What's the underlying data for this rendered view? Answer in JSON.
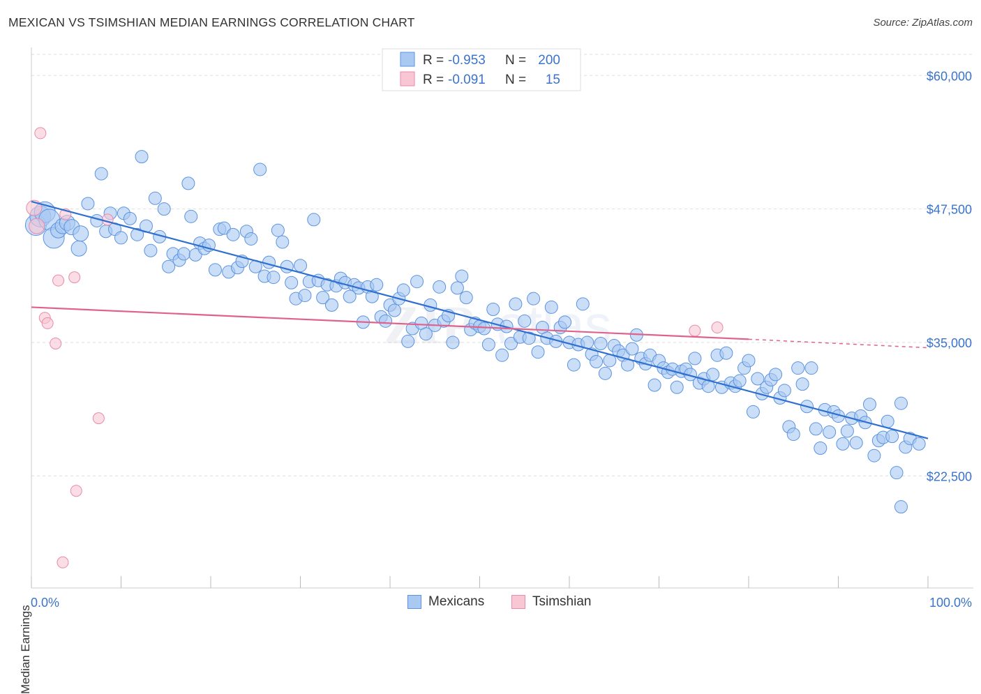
{
  "title": "MEXICAN VS TSIMSHIAN MEDIAN EARNINGS CORRELATION CHART",
  "source": "Source: ZipAtlas.com",
  "watermark": "ZIPatlas",
  "colors": {
    "blue_fill": "#a9c8f2",
    "blue_stroke": "#5b93e0",
    "blue_line": "#2e6fd0",
    "pink_fill": "#f8c6d4",
    "pink_stroke": "#e98aa8",
    "pink_line": "#e0628c",
    "tick_text": "#3a74c9",
    "grid": "#dddddd"
  },
  "legend": {
    "rows": [
      {
        "r_label": "R =",
        "r_value": "-0.953",
        "n_label": "N =",
        "n_value": "200"
      },
      {
        "r_label": "R =",
        "r_value": "-0.091",
        "n_label": "N =",
        "n_value": "15"
      }
    ]
  },
  "bottom_legend": [
    "Mexicans",
    "Tsimshian"
  ],
  "chart_data": {
    "type": "scatter",
    "xlabel": "",
    "ylabel": "Median Earnings",
    "xlim": [
      0,
      100
    ],
    "ylim": [
      12000,
      62500
    ],
    "x_tick_labels": [
      "0.0%",
      "100.0%"
    ],
    "y_ticks": [
      22500,
      35000,
      47500,
      60000
    ],
    "y_tick_labels": [
      "$22,500",
      "$35,000",
      "$47,500",
      "$60,000"
    ],
    "grid": true,
    "legend_position": "top-center",
    "series": [
      {
        "name": "Mexicans",
        "trend": {
          "x0": 0,
          "y0": 48200,
          "x1": 100,
          "y1": 26000
        },
        "points": [
          {
            "x": 0.5,
            "y": 46000
          },
          {
            "x": 1.0,
            "y": 46800
          },
          {
            "x": 1.5,
            "y": 47200
          },
          {
            "x": 2.0,
            "y": 46500
          },
          {
            "x": 2.5,
            "y": 44800
          },
          {
            "x": 3.0,
            "y": 45500
          },
          {
            "x": 3.5,
            "y": 45900
          },
          {
            "x": 4.0,
            "y": 46200
          },
          {
            "x": 4.5,
            "y": 45800
          },
          {
            "x": 5.3,
            "y": 43800
          },
          {
            "x": 5.5,
            "y": 45200
          },
          {
            "x": 6.3,
            "y": 48000
          },
          {
            "x": 7.3,
            "y": 46400
          },
          {
            "x": 7.8,
            "y": 50800
          },
          {
            "x": 8.3,
            "y": 45400
          },
          {
            "x": 8.8,
            "y": 47100
          },
          {
            "x": 9.3,
            "y": 45600
          },
          {
            "x": 10.0,
            "y": 44800
          },
          {
            "x": 10.3,
            "y": 47100
          },
          {
            "x": 11.0,
            "y": 46600
          },
          {
            "x": 11.8,
            "y": 45100
          },
          {
            "x": 12.3,
            "y": 52400
          },
          {
            "x": 12.8,
            "y": 45900
          },
          {
            "x": 13.3,
            "y": 43600
          },
          {
            "x": 13.8,
            "y": 48500
          },
          {
            "x": 14.3,
            "y": 44900
          },
          {
            "x": 14.8,
            "y": 47500
          },
          {
            "x": 15.3,
            "y": 42100
          },
          {
            "x": 15.8,
            "y": 43300
          },
          {
            "x": 16.5,
            "y": 42700
          },
          {
            "x": 17.0,
            "y": 43300
          },
          {
            "x": 17.5,
            "y": 49900
          },
          {
            "x": 17.8,
            "y": 46800
          },
          {
            "x": 18.3,
            "y": 43200
          },
          {
            "x": 18.8,
            "y": 44300
          },
          {
            "x": 19.3,
            "y": 43800
          },
          {
            "x": 19.8,
            "y": 44100
          },
          {
            "x": 20.5,
            "y": 41800
          },
          {
            "x": 21.0,
            "y": 45600
          },
          {
            "x": 21.5,
            "y": 45700
          },
          {
            "x": 22.0,
            "y": 41600
          },
          {
            "x": 22.5,
            "y": 45100
          },
          {
            "x": 23.0,
            "y": 42000
          },
          {
            "x": 23.5,
            "y": 42600
          },
          {
            "x": 24.0,
            "y": 45400
          },
          {
            "x": 24.5,
            "y": 44700
          },
          {
            "x": 25.0,
            "y": 42100
          },
          {
            "x": 25.5,
            "y": 51200
          },
          {
            "x": 26.0,
            "y": 41200
          },
          {
            "x": 26.5,
            "y": 42500
          },
          {
            "x": 27.0,
            "y": 41100
          },
          {
            "x": 27.5,
            "y": 45500
          },
          {
            "x": 28.0,
            "y": 44400
          },
          {
            "x": 28.5,
            "y": 42100
          },
          {
            "x": 29.0,
            "y": 40600
          },
          {
            "x": 29.5,
            "y": 39100
          },
          {
            "x": 30.0,
            "y": 42200
          },
          {
            "x": 30.5,
            "y": 39400
          },
          {
            "x": 31.0,
            "y": 40700
          },
          {
            "x": 31.5,
            "y": 46500
          },
          {
            "x": 32.0,
            "y": 40800
          },
          {
            "x": 32.5,
            "y": 39200
          },
          {
            "x": 33.0,
            "y": 40400
          },
          {
            "x": 33.5,
            "y": 38500
          },
          {
            "x": 34.0,
            "y": 40300
          },
          {
            "x": 34.5,
            "y": 41000
          },
          {
            "x": 35.0,
            "y": 40600
          },
          {
            "x": 35.5,
            "y": 39300
          },
          {
            "x": 36.0,
            "y": 40400
          },
          {
            "x": 36.5,
            "y": 40100
          },
          {
            "x": 37.0,
            "y": 36900
          },
          {
            "x": 37.5,
            "y": 40200
          },
          {
            "x": 38.0,
            "y": 39300
          },
          {
            "x": 38.5,
            "y": 40400
          },
          {
            "x": 39.0,
            "y": 37400
          },
          {
            "x": 39.5,
            "y": 37000
          },
          {
            "x": 40.0,
            "y": 38500
          },
          {
            "x": 40.5,
            "y": 38000
          },
          {
            "x": 41.0,
            "y": 39100
          },
          {
            "x": 41.5,
            "y": 39900
          },
          {
            "x": 42.0,
            "y": 35100
          },
          {
            "x": 42.5,
            "y": 36300
          },
          {
            "x": 43.0,
            "y": 40700
          },
          {
            "x": 43.5,
            "y": 36800
          },
          {
            "x": 44.0,
            "y": 35800
          },
          {
            "x": 44.5,
            "y": 38500
          },
          {
            "x": 45.0,
            "y": 36600
          },
          {
            "x": 45.5,
            "y": 40200
          },
          {
            "x": 46.0,
            "y": 37000
          },
          {
            "x": 46.5,
            "y": 37500
          },
          {
            "x": 47.0,
            "y": 35000
          },
          {
            "x": 47.5,
            "y": 40100
          },
          {
            "x": 48.0,
            "y": 41200
          },
          {
            "x": 48.5,
            "y": 39200
          },
          {
            "x": 49.0,
            "y": 36200
          },
          {
            "x": 49.5,
            "y": 36800
          },
          {
            "x": 50.0,
            "y": 36500
          },
          {
            "x": 50.5,
            "y": 36300
          },
          {
            "x": 51.0,
            "y": 34800
          },
          {
            "x": 51.5,
            "y": 38100
          },
          {
            "x": 52.0,
            "y": 36700
          },
          {
            "x": 52.5,
            "y": 33800
          },
          {
            "x": 53.0,
            "y": 36500
          },
          {
            "x": 53.5,
            "y": 34900
          },
          {
            "x": 54.0,
            "y": 38600
          },
          {
            "x": 54.5,
            "y": 35500
          },
          {
            "x": 55.0,
            "y": 37000
          },
          {
            "x": 55.5,
            "y": 35400
          },
          {
            "x": 56.0,
            "y": 39100
          },
          {
            "x": 56.5,
            "y": 34100
          },
          {
            "x": 57.0,
            "y": 36400
          },
          {
            "x": 57.5,
            "y": 35400
          },
          {
            "x": 58.0,
            "y": 38300
          },
          {
            "x": 58.5,
            "y": 35100
          },
          {
            "x": 59.0,
            "y": 36400
          },
          {
            "x": 59.5,
            "y": 36900
          },
          {
            "x": 60.0,
            "y": 35000
          },
          {
            "x": 60.5,
            "y": 32900
          },
          {
            "x": 61.0,
            "y": 34800
          },
          {
            "x": 61.5,
            "y": 38600
          },
          {
            "x": 62.0,
            "y": 35000
          },
          {
            "x": 62.5,
            "y": 33900
          },
          {
            "x": 63.0,
            "y": 33200
          },
          {
            "x": 63.5,
            "y": 34900
          },
          {
            "x": 64.0,
            "y": 32100
          },
          {
            "x": 64.5,
            "y": 33300
          },
          {
            "x": 65.0,
            "y": 34700
          },
          {
            "x": 65.5,
            "y": 34200
          },
          {
            "x": 66.0,
            "y": 33800
          },
          {
            "x": 66.5,
            "y": 32900
          },
          {
            "x": 67.0,
            "y": 34400
          },
          {
            "x": 67.5,
            "y": 35700
          },
          {
            "x": 68.0,
            "y": 33500
          },
          {
            "x": 68.5,
            "y": 33000
          },
          {
            "x": 69.0,
            "y": 33800
          },
          {
            "x": 69.5,
            "y": 31000
          },
          {
            "x": 70.0,
            "y": 33300
          },
          {
            "x": 70.5,
            "y": 32600
          },
          {
            "x": 71.0,
            "y": 32200
          },
          {
            "x": 71.5,
            "y": 32500
          },
          {
            "x": 72.0,
            "y": 30800
          },
          {
            "x": 72.5,
            "y": 32300
          },
          {
            "x": 73.0,
            "y": 32500
          },
          {
            "x": 73.5,
            "y": 32000
          },
          {
            "x": 74.0,
            "y": 33500
          },
          {
            "x": 74.5,
            "y": 31200
          },
          {
            "x": 75.0,
            "y": 31600
          },
          {
            "x": 75.5,
            "y": 30900
          },
          {
            "x": 76.0,
            "y": 32000
          },
          {
            "x": 76.5,
            "y": 33800
          },
          {
            "x": 77.0,
            "y": 30800
          },
          {
            "x": 77.5,
            "y": 34000
          },
          {
            "x": 78.0,
            "y": 31200
          },
          {
            "x": 78.5,
            "y": 30900
          },
          {
            "x": 79.0,
            "y": 31400
          },
          {
            "x": 79.5,
            "y": 32600
          },
          {
            "x": 80.0,
            "y": 33300
          },
          {
            "x": 80.5,
            "y": 28500
          },
          {
            "x": 81.0,
            "y": 31600
          },
          {
            "x": 81.5,
            "y": 30200
          },
          {
            "x": 82.0,
            "y": 30800
          },
          {
            "x": 82.5,
            "y": 31500
          },
          {
            "x": 83.0,
            "y": 32000
          },
          {
            "x": 83.5,
            "y": 29800
          },
          {
            "x": 84.0,
            "y": 30500
          },
          {
            "x": 84.5,
            "y": 27100
          },
          {
            "x": 85.0,
            "y": 26400
          },
          {
            "x": 85.5,
            "y": 32600
          },
          {
            "x": 86.0,
            "y": 31100
          },
          {
            "x": 86.5,
            "y": 29000
          },
          {
            "x": 87.0,
            "y": 32600
          },
          {
            "x": 87.5,
            "y": 26900
          },
          {
            "x": 88.0,
            "y": 25100
          },
          {
            "x": 88.5,
            "y": 28700
          },
          {
            "x": 89.0,
            "y": 26600
          },
          {
            "x": 89.5,
            "y": 28500
          },
          {
            "x": 90.0,
            "y": 28100
          },
          {
            "x": 90.5,
            "y": 25500
          },
          {
            "x": 91.0,
            "y": 26700
          },
          {
            "x": 91.5,
            "y": 27900
          },
          {
            "x": 92.0,
            "y": 25600
          },
          {
            "x": 92.5,
            "y": 28100
          },
          {
            "x": 93.0,
            "y": 27500
          },
          {
            "x": 93.5,
            "y": 29200
          },
          {
            "x": 94.0,
            "y": 24400
          },
          {
            "x": 94.5,
            "y": 25800
          },
          {
            "x": 95.0,
            "y": 26100
          },
          {
            "x": 95.5,
            "y": 27600
          },
          {
            "x": 96.0,
            "y": 26200
          },
          {
            "x": 96.5,
            "y": 22800
          },
          {
            "x": 97.0,
            "y": 29300
          },
          {
            "x": 97.5,
            "y": 25200
          },
          {
            "x": 98.0,
            "y": 26000
          },
          {
            "x": 97.0,
            "y": 19600
          },
          {
            "x": 99.0,
            "y": 25500
          }
        ]
      },
      {
        "name": "Tsimshian",
        "trend": {
          "x0": 0,
          "y0": 38300,
          "x1": 80,
          "y1": 35300
        },
        "trend_dashed_to": {
          "x": 100,
          "y": 34500
        },
        "points": [
          {
            "x": 0.3,
            "y": 47600
          },
          {
            "x": 0.6,
            "y": 45900
          },
          {
            "x": 1.0,
            "y": 54600
          },
          {
            "x": 1.5,
            "y": 37300
          },
          {
            "x": 1.8,
            "y": 36800
          },
          {
            "x": 2.7,
            "y": 34900
          },
          {
            "x": 3.0,
            "y": 40800
          },
          {
            "x": 3.5,
            "y": 14400
          },
          {
            "x": 4.8,
            "y": 41100
          },
          {
            "x": 5.0,
            "y": 21100
          },
          {
            "x": 7.5,
            "y": 27900
          },
          {
            "x": 8.5,
            "y": 46500
          },
          {
            "x": 3.8,
            "y": 47000
          },
          {
            "x": 74.0,
            "y": 36100
          },
          {
            "x": 76.5,
            "y": 36400
          }
        ]
      }
    ]
  }
}
